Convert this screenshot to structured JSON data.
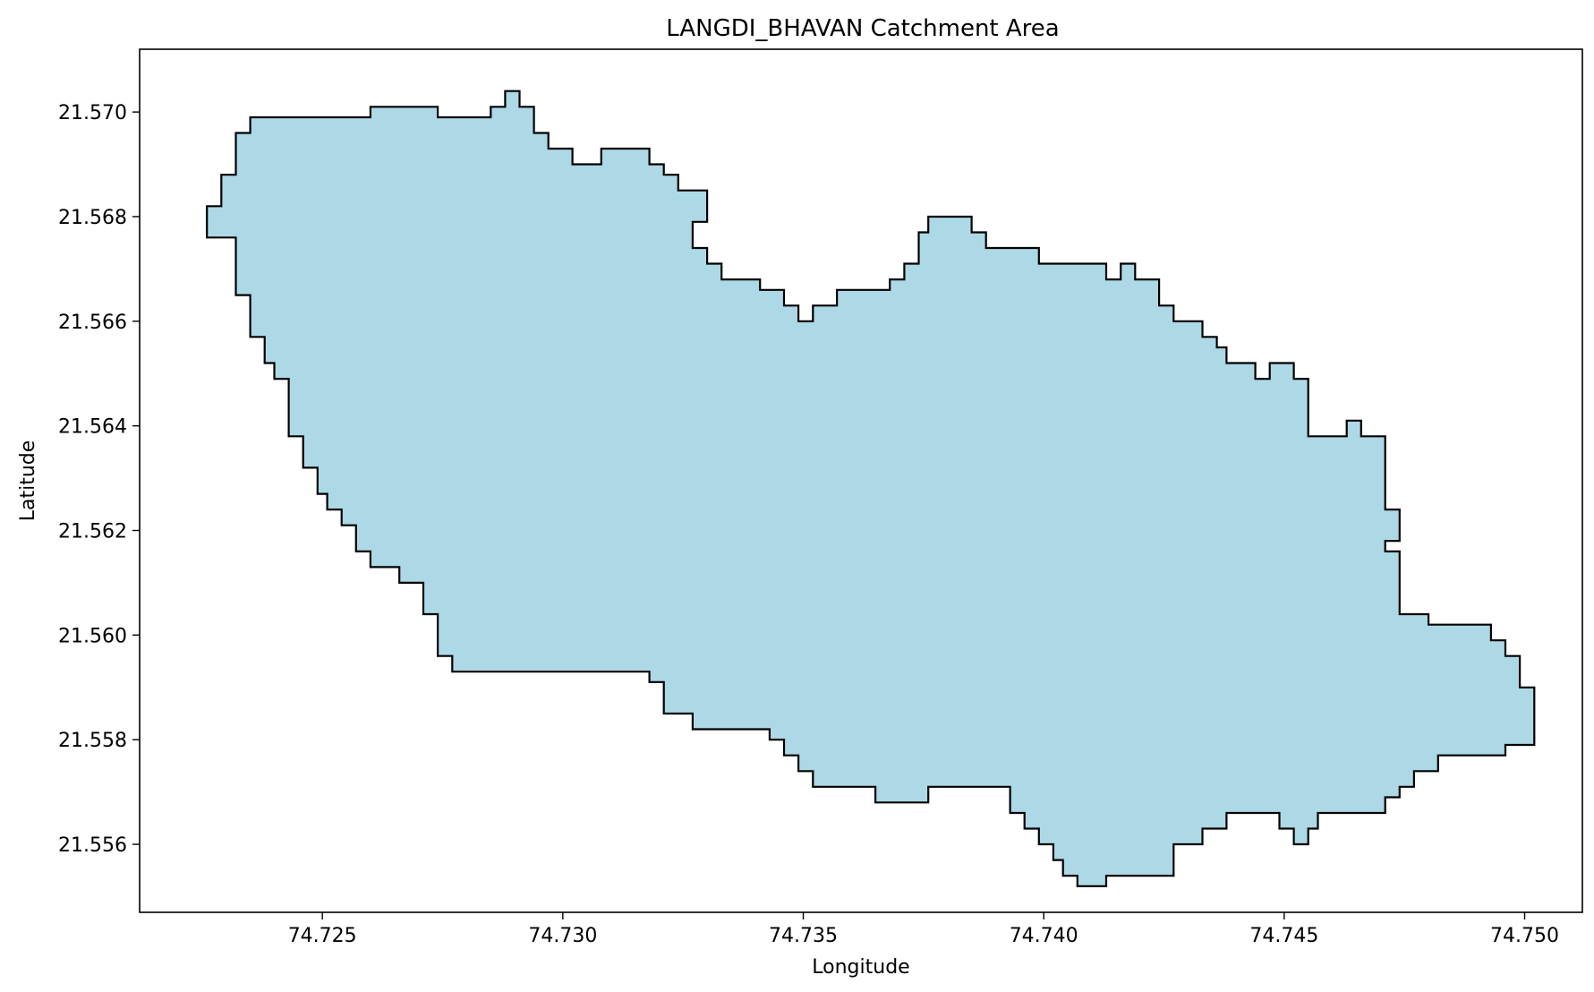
{
  "title": "LANGDI_BHAVAN Catchment Area",
  "xlabel": "Longitude",
  "ylabel": "Latitude",
  "colors": {
    "fill": "#add8e6",
    "edge": "#000000"
  },
  "chart_data": {
    "type": "area",
    "title": "LANGDI_BHAVAN Catchment Area",
    "xlabel": "Longitude",
    "ylabel": "Latitude",
    "xlim": [
      74.7212,
      74.7512
    ],
    "ylim": [
      21.5547,
      21.5712
    ],
    "grid": false,
    "xticks": [
      74.725,
      74.73,
      74.735,
      74.74,
      74.745,
      74.75
    ],
    "xtick_labels": [
      "74.725",
      "74.730",
      "74.735",
      "74.740",
      "74.745",
      "74.750"
    ],
    "yticks": [
      21.556,
      21.558,
      21.56,
      21.562,
      21.564,
      21.566,
      21.568,
      21.57
    ],
    "ytick_labels": [
      "21.556",
      "21.558",
      "21.560",
      "21.562",
      "21.564",
      "21.566",
      "21.568",
      "21.570"
    ],
    "boundary": [
      [
        74.7226,
        21.5676
      ],
      [
        74.7226,
        21.5682
      ],
      [
        74.7229,
        21.5682
      ],
      [
        74.7229,
        21.5688
      ],
      [
        74.7232,
        21.5688
      ],
      [
        74.7232,
        21.5696
      ],
      [
        74.7235,
        21.5696
      ],
      [
        74.7235,
        21.5699
      ],
      [
        74.726,
        21.5699
      ],
      [
        74.726,
        21.5701
      ],
      [
        74.7274,
        21.5701
      ],
      [
        74.7274,
        21.5699
      ],
      [
        74.7285,
        21.5699
      ],
      [
        74.7285,
        21.5701
      ],
      [
        74.7288,
        21.5701
      ],
      [
        74.7288,
        21.5704
      ],
      [
        74.7291,
        21.5704
      ],
      [
        74.7291,
        21.5701
      ],
      [
        74.7294,
        21.5701
      ],
      [
        74.7294,
        21.5696
      ],
      [
        74.7297,
        21.5696
      ],
      [
        74.7297,
        21.5693
      ],
      [
        74.7302,
        21.5693
      ],
      [
        74.7302,
        21.569
      ],
      [
        74.7308,
        21.569
      ],
      [
        74.7308,
        21.5693
      ],
      [
        74.7318,
        21.5693
      ],
      [
        74.7318,
        21.569
      ],
      [
        74.7321,
        21.569
      ],
      [
        74.7321,
        21.5688
      ],
      [
        74.7324,
        21.5688
      ],
      [
        74.7324,
        21.5685
      ],
      [
        74.733,
        21.5685
      ],
      [
        74.733,
        21.5679
      ],
      [
        74.7327,
        21.5679
      ],
      [
        74.7327,
        21.5674
      ],
      [
        74.733,
        21.5674
      ],
      [
        74.733,
        21.5671
      ],
      [
        74.7333,
        21.5671
      ],
      [
        74.7333,
        21.5668
      ],
      [
        74.7341,
        21.5668
      ],
      [
        74.7341,
        21.5666
      ],
      [
        74.7346,
        21.5666
      ],
      [
        74.7346,
        21.5663
      ],
      [
        74.7349,
        21.5663
      ],
      [
        74.7349,
        21.566
      ],
      [
        74.7352,
        21.566
      ],
      [
        74.7352,
        21.5663
      ],
      [
        74.7357,
        21.5663
      ],
      [
        74.7357,
        21.5666
      ],
      [
        74.7368,
        21.5666
      ],
      [
        74.7368,
        21.5668
      ],
      [
        74.7371,
        21.5668
      ],
      [
        74.7371,
        21.5671
      ],
      [
        74.7374,
        21.5671
      ],
      [
        74.7374,
        21.5677
      ],
      [
        74.7376,
        21.5677
      ],
      [
        74.7376,
        21.568
      ],
      [
        74.7385,
        21.568
      ],
      [
        74.7385,
        21.5677
      ],
      [
        74.7388,
        21.5677
      ],
      [
        74.7388,
        21.5674
      ],
      [
        74.7399,
        21.5674
      ],
      [
        74.7399,
        21.5671
      ],
      [
        74.7413,
        21.5671
      ],
      [
        74.7413,
        21.5668
      ],
      [
        74.7416,
        21.5668
      ],
      [
        74.7416,
        21.5671
      ],
      [
        74.7419,
        21.5671
      ],
      [
        74.7419,
        21.5668
      ],
      [
        74.7424,
        21.5668
      ],
      [
        74.7424,
        21.5663
      ],
      [
        74.7427,
        21.5663
      ],
      [
        74.7427,
        21.566
      ],
      [
        74.7433,
        21.566
      ],
      [
        74.7433,
        21.5657
      ],
      [
        74.7436,
        21.5657
      ],
      [
        74.7436,
        21.5655
      ],
      [
        74.7438,
        21.5655
      ],
      [
        74.7438,
        21.5652
      ],
      [
        74.7444,
        21.5652
      ],
      [
        74.7444,
        21.5649
      ],
      [
        74.7447,
        21.5649
      ],
      [
        74.7447,
        21.5652
      ],
      [
        74.7452,
        21.5652
      ],
      [
        74.7452,
        21.5649
      ],
      [
        74.7455,
        21.5649
      ],
      [
        74.7455,
        21.5638
      ],
      [
        74.7463,
        21.5638
      ],
      [
        74.7463,
        21.5641
      ],
      [
        74.7466,
        21.5641
      ],
      [
        74.7466,
        21.5638
      ],
      [
        74.7471,
        21.5638
      ],
      [
        74.7471,
        21.5624
      ],
      [
        74.7474,
        21.5624
      ],
      [
        74.7474,
        21.5618
      ],
      [
        74.7471,
        21.5618
      ],
      [
        74.7471,
        21.5616
      ],
      [
        74.7474,
        21.5616
      ],
      [
        74.7474,
        21.5604
      ],
      [
        74.748,
        21.5604
      ],
      [
        74.748,
        21.5602
      ],
      [
        74.7493,
        21.5602
      ],
      [
        74.7493,
        21.5599
      ],
      [
        74.7496,
        21.5599
      ],
      [
        74.7496,
        21.5596
      ],
      [
        74.7499,
        21.5596
      ],
      [
        74.7499,
        21.559
      ],
      [
        74.7502,
        21.559
      ],
      [
        74.7502,
        21.5579
      ],
      [
        74.7496,
        21.5579
      ],
      [
        74.7496,
        21.5577
      ],
      [
        74.7482,
        21.5577
      ],
      [
        74.7482,
        21.5574
      ],
      [
        74.7477,
        21.5574
      ],
      [
        74.7477,
        21.5571
      ],
      [
        74.7474,
        21.5571
      ],
      [
        74.7474,
        21.5569
      ],
      [
        74.7471,
        21.5569
      ],
      [
        74.7471,
        21.5566
      ],
      [
        74.7457,
        21.5566
      ],
      [
        74.7457,
        21.5563
      ],
      [
        74.7455,
        21.5563
      ],
      [
        74.7455,
        21.556
      ],
      [
        74.7452,
        21.556
      ],
      [
        74.7452,
        21.5563
      ],
      [
        74.7449,
        21.5563
      ],
      [
        74.7449,
        21.5566
      ],
      [
        74.7438,
        21.5566
      ],
      [
        74.7438,
        21.5563
      ],
      [
        74.7433,
        21.5563
      ],
      [
        74.7433,
        21.556
      ],
      [
        74.7427,
        21.556
      ],
      [
        74.7427,
        21.5554
      ],
      [
        74.7413,
        21.5554
      ],
      [
        74.7413,
        21.5552
      ],
      [
        74.7407,
        21.5552
      ],
      [
        74.7407,
        21.5554
      ],
      [
        74.7404,
        21.5554
      ],
      [
        74.7404,
        21.5557
      ],
      [
        74.7402,
        21.5557
      ],
      [
        74.7402,
        21.556
      ],
      [
        74.7399,
        21.556
      ],
      [
        74.7399,
        21.5563
      ],
      [
        74.7396,
        21.5563
      ],
      [
        74.7396,
        21.5566
      ],
      [
        74.7393,
        21.5566
      ],
      [
        74.7393,
        21.5571
      ],
      [
        74.7376,
        21.5571
      ],
      [
        74.7376,
        21.5568
      ],
      [
        74.7365,
        21.5568
      ],
      [
        74.7365,
        21.5571
      ],
      [
        74.7352,
        21.5571
      ],
      [
        74.7352,
        21.5574
      ],
      [
        74.7349,
        21.5574
      ],
      [
        74.7349,
        21.5577
      ],
      [
        74.7346,
        21.5577
      ],
      [
        74.7346,
        21.558
      ],
      [
        74.7343,
        21.558
      ],
      [
        74.7343,
        21.5582
      ],
      [
        74.7327,
        21.5582
      ],
      [
        74.7327,
        21.5585
      ],
      [
        74.7321,
        21.5585
      ],
      [
        74.7321,
        21.5591
      ],
      [
        74.7318,
        21.5591
      ],
      [
        74.7318,
        21.5593
      ],
      [
        74.7277,
        21.5593
      ],
      [
        74.7277,
        21.5596
      ],
      [
        74.7274,
        21.5596
      ],
      [
        74.7274,
        21.5604
      ],
      [
        74.7271,
        21.5604
      ],
      [
        74.7271,
        21.561
      ],
      [
        74.7266,
        21.561
      ],
      [
        74.7266,
        21.5613
      ],
      [
        74.726,
        21.5613
      ],
      [
        74.726,
        21.5616
      ],
      [
        74.7257,
        21.5616
      ],
      [
        74.7257,
        21.5621
      ],
      [
        74.7254,
        21.5621
      ],
      [
        74.7254,
        21.5624
      ],
      [
        74.7251,
        21.5624
      ],
      [
        74.7251,
        21.5627
      ],
      [
        74.7249,
        21.5627
      ],
      [
        74.7249,
        21.5632
      ],
      [
        74.7246,
        21.5632
      ],
      [
        74.7246,
        21.5638
      ],
      [
        74.7243,
        21.5638
      ],
      [
        74.7243,
        21.5649
      ],
      [
        74.724,
        21.5649
      ],
      [
        74.724,
        21.5652
      ],
      [
        74.7238,
        21.5652
      ],
      [
        74.7238,
        21.5657
      ],
      [
        74.7235,
        21.5657
      ],
      [
        74.7235,
        21.5665
      ],
      [
        74.7232,
        21.5665
      ],
      [
        74.7232,
        21.5676
      ]
    ]
  }
}
